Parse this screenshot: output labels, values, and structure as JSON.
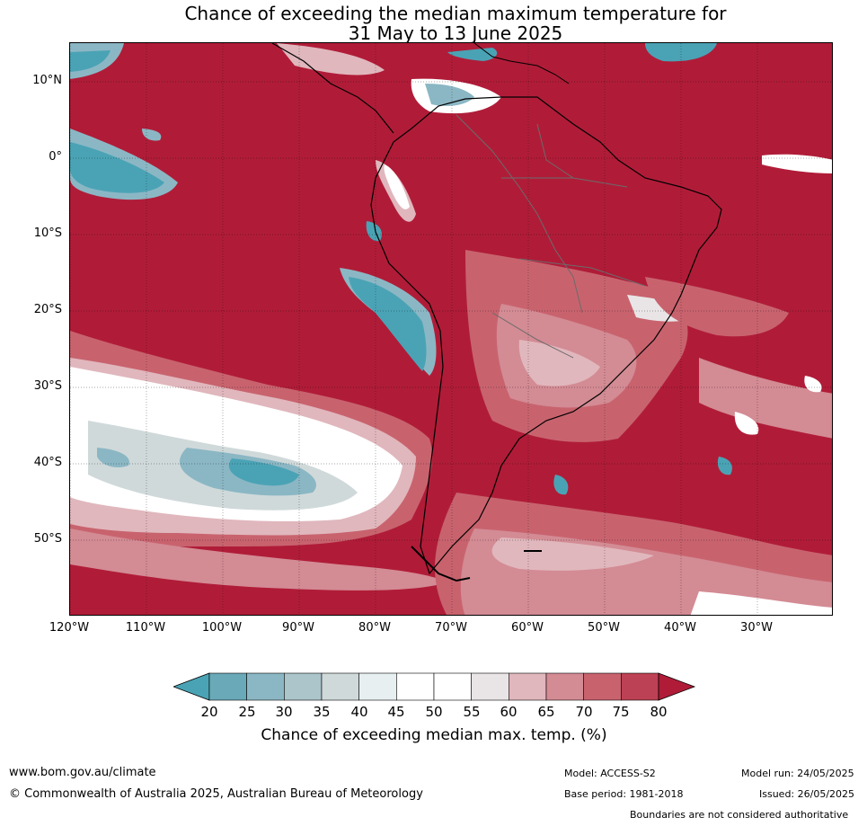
{
  "title": {
    "line1": "Chance of exceeding the median maximum temperature for",
    "line2": "31 May to 13 June 2025"
  },
  "map": {
    "latitude_labels": [
      "10°N",
      "0°",
      "10°S",
      "20°S",
      "30°S",
      "40°S",
      "50°S"
    ],
    "longitude_labels": [
      "120°W",
      "110°W",
      "100°W",
      "90°W",
      "80°W",
      "70°W",
      "60°W",
      "50°W",
      "40°W",
      "30°W"
    ],
    "lon_range": [
      -120,
      -20
    ],
    "lat_range": [
      -60,
      15
    ],
    "grid": "dotted",
    "coastlines": "black",
    "country_borders": "grey"
  },
  "legend": {
    "tick_labels": [
      "20",
      "25",
      "30",
      "35",
      "40",
      "45",
      "50",
      "55",
      "60",
      "65",
      "70",
      "75",
      "80"
    ],
    "label": "Chance of exceeding median max. temp. (%)",
    "colors": [
      "#4aa3b5",
      "#6aa9b7",
      "#8bb7c4",
      "#abc5ca",
      "#d0d9da",
      "#e8eff1",
      "#ffffff",
      "#ffffff",
      "#e9e5e6",
      "#e0b7bd",
      "#d38b94",
      "#c8636e",
      "#bd4154",
      "#b01c38"
    ],
    "extend": "both"
  },
  "footer": {
    "website": "www.bom.gov.au/climate",
    "copyright": "© Commonwealth of Australia 2025, Australian Bureau of Meteorology",
    "model": "Model: ACCESS-S2",
    "model_run": "Model run: 24/05/2025",
    "base_period": "Base period: 1981-2018",
    "issued": "Issued: 26/05/2025",
    "disclaimer": "Boundaries are not considered authoritative"
  }
}
